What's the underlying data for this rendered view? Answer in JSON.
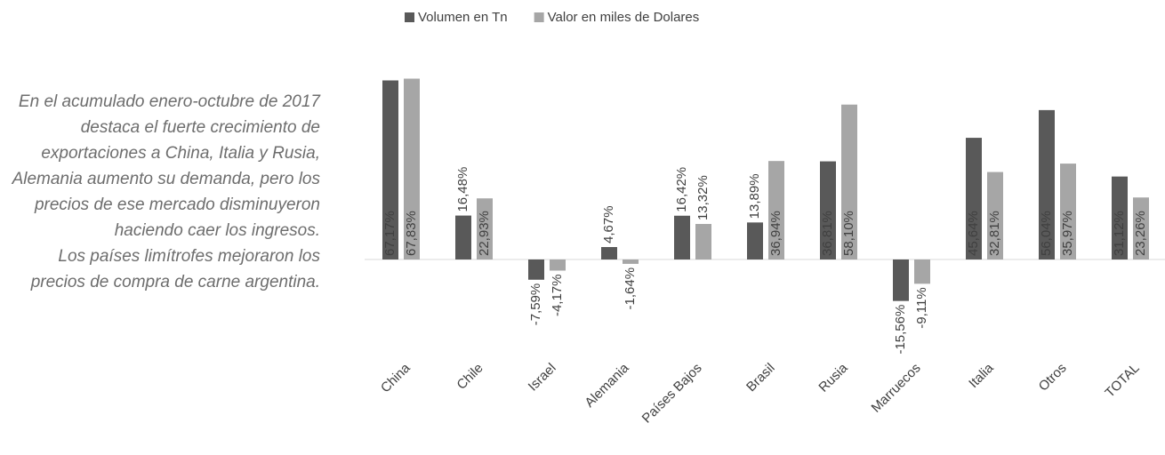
{
  "note": [
    "En el acumulado enero-octubre de 2017 destaca el fuerte crecimiento de exportaciones a China, Italia y Rusia, Alemania aumento su demanda, pero los precios de ese mercado disminuyeron haciendo caer los ingresos.",
    "Los países limítrofes mejoraron los precios de compra de carne argentina."
  ],
  "chart_data": {
    "type": "bar",
    "categories": [
      "China",
      "Chile",
      "Israel",
      "Alemania",
      "Países Bajos",
      "Brasil",
      "Rusia",
      "Marruecos",
      "Italia",
      "Otros",
      "TOTAL"
    ],
    "series": [
      {
        "name": "Volumen en Tn",
        "color": "#595959",
        "values": [
          67.17,
          16.48,
          -7.59,
          4.67,
          16.42,
          13.89,
          36.81,
          -15.56,
          45.64,
          56.04,
          31.12
        ],
        "value_labels": [
          "67,17%",
          "16,48%",
          "-7,59%",
          "4,67%",
          "16,42%",
          "13,89%",
          "36,81%",
          "-15,56%",
          "45,64%",
          "56,04%",
          "31,12%"
        ]
      },
      {
        "name": "Valor en miles de Dolares",
        "color": "#a6a6a6",
        "values": [
          67.83,
          22.93,
          -4.17,
          -1.64,
          13.32,
          36.94,
          58.1,
          -9.11,
          32.81,
          35.97,
          23.26
        ],
        "value_labels": [
          "67,83%",
          "22,93%",
          "-4,17%",
          "-1,64%",
          "13,32%",
          "36,94%",
          "58,10%",
          "-9,11%",
          "32,81%",
          "35,97%",
          "23,26%"
        ]
      }
    ],
    "ylim": [
      -20,
      70
    ],
    "legend": "top"
  }
}
